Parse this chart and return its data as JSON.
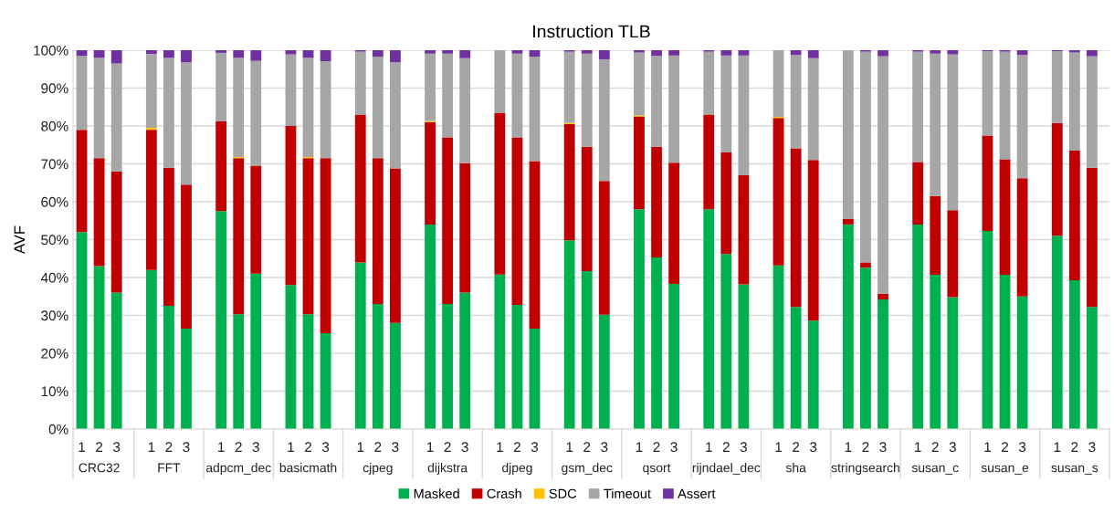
{
  "chart_data": {
    "type": "bar",
    "stacked": true,
    "title": "Instruction TLB",
    "ylabel": "AVF",
    "categories": [
      "1",
      "2",
      "3",
      null,
      "1",
      "2",
      "3",
      null,
      "1",
      "2",
      "3",
      null,
      "1",
      "2",
      "3",
      null,
      "1",
      "2",
      "3",
      null,
      "1",
      "2",
      "3",
      null,
      "1",
      "2",
      "3",
      null,
      "1",
      "2",
      "3",
      null,
      "1",
      "2",
      "3",
      null,
      "1",
      "2",
      "3",
      null,
      "1",
      "2",
      "3",
      null,
      "1",
      "2",
      "3",
      null,
      "1",
      "2",
      "3",
      null,
      "1",
      "2",
      "3",
      null,
      "1",
      "2",
      "3"
    ],
    "annotations": [
      "CRC32",
      "FFT",
      "adpcm_dec",
      "basicmath",
      "cjpeg",
      "dijkstra",
      "djpeg",
      "gsm_dec",
      "qsort",
      "rijndael_dec",
      "sha",
      "stringsearch",
      "susan_c",
      "susan_e",
      "susan_s"
    ],
    "series": [
      {
        "name": "Masked",
        "color": "#00b050",
        "values": [
          52,
          43,
          36,
          null,
          42,
          32.5,
          26.5,
          null,
          57.5,
          30.3,
          41,
          null,
          38,
          30.3,
          25.3,
          null,
          44,
          33,
          28,
          null,
          54,
          33,
          36,
          null,
          40.8,
          32.8,
          26.5,
          null,
          49.8,
          41.7,
          30.2,
          null,
          58,
          45.3,
          38.3,
          null,
          58,
          46.2,
          38.2,
          null,
          43.2,
          32.2,
          28.6,
          null,
          54,
          42.6,
          34.2,
          null,
          54,
          40.7,
          34.8,
          null,
          52.3,
          40.7,
          35,
          null,
          51,
          39.3,
          32.2
        ]
      },
      {
        "name": "Crash",
        "color": "#c00000",
        "values": [
          27,
          28.5,
          32,
          null,
          37,
          36.5,
          38,
          null,
          23.7,
          41.2,
          28.5,
          null,
          42,
          41.2,
          46.2,
          null,
          39,
          38.5,
          40.8,
          null,
          27,
          44,
          34.2,
          null,
          42.7,
          44.2,
          44.2,
          null,
          30.7,
          32.8,
          35.3,
          null,
          24.5,
          29.2,
          32,
          null,
          25,
          26.8,
          28.8,
          null,
          38.9,
          41.9,
          42.4,
          null,
          1.5,
          1.4,
          1.5,
          null,
          16.5,
          20.8,
          23,
          null,
          25.2,
          30.5,
          31.2,
          null,
          29.8,
          34.2,
          36.8
        ]
      },
      {
        "name": "SDC",
        "color": "#ffc000",
        "values": [
          0,
          0,
          0,
          null,
          0.5,
          0,
          0,
          null,
          0,
          0.3,
          0,
          null,
          0,
          0.3,
          0,
          null,
          0,
          0,
          0,
          null,
          0.3,
          0,
          0,
          null,
          0,
          0,
          0,
          null,
          0.3,
          0,
          0,
          null,
          0.3,
          0,
          0,
          null,
          0,
          0,
          0,
          null,
          0.3,
          0,
          0,
          null,
          0,
          0,
          0,
          null,
          0,
          0,
          0,
          null,
          0,
          0,
          0,
          null,
          0,
          0,
          0
        ]
      },
      {
        "name": "Timeout",
        "color": "#a6a6a6",
        "values": [
          19.5,
          26.5,
          28.5,
          null,
          19.5,
          29,
          32.3,
          null,
          18.1,
          26.2,
          27.7,
          null,
          18.9,
          26.2,
          25.6,
          null,
          16.6,
          26.8,
          28,
          null,
          17.8,
          22.1,
          27.7,
          null,
          16.5,
          22.1,
          27.6,
          null,
          18.8,
          24.6,
          32.1,
          null,
          16.6,
          24,
          28.3,
          null,
          16.6,
          25.6,
          31.6,
          null,
          17.6,
          24.6,
          26.9,
          null,
          44.5,
          55.6,
          62.7,
          null,
          29.1,
          37.6,
          41.1,
          null,
          22.2,
          28.4,
          32.5,
          null,
          18.9,
          25.9,
          29.4
        ]
      },
      {
        "name": "Assert",
        "color": "#7030a0",
        "values": [
          1.5,
          2,
          3.5,
          null,
          1,
          2,
          3.2,
          null,
          0.7,
          2,
          2.8,
          null,
          1.1,
          2,
          2.9,
          null,
          0.4,
          1.7,
          3.2,
          null,
          0.9,
          0.9,
          2.1,
          null,
          0,
          0.9,
          1.7,
          null,
          0.4,
          0.9,
          2.4,
          null,
          0.6,
          1.5,
          1.4,
          null,
          0.4,
          1.4,
          1.4,
          null,
          0,
          1.3,
          2.1,
          null,
          0,
          0.4,
          1.6,
          null,
          0.4,
          0.9,
          1.1,
          null,
          0.3,
          0.4,
          1.3,
          null,
          0.3,
          0.6,
          1.6
        ]
      }
    ],
    "ylim": [
      0,
      100
    ],
    "yticks": [
      {
        "value": 0,
        "label": "0%"
      },
      {
        "value": 10,
        "label": "10%"
      },
      {
        "value": 20,
        "label": "20%"
      },
      {
        "value": 30,
        "label": "30%"
      },
      {
        "value": 40,
        "label": "40%"
      },
      {
        "value": 50,
        "label": "50%"
      },
      {
        "value": 60,
        "label": "60%"
      },
      {
        "value": 70,
        "label": "70%"
      },
      {
        "value": 80,
        "label": "80%"
      },
      {
        "value": 90,
        "label": "90%"
      },
      {
        "value": 100,
        "label": "100%"
      }
    ],
    "grid": "y",
    "legend": "bottom"
  }
}
